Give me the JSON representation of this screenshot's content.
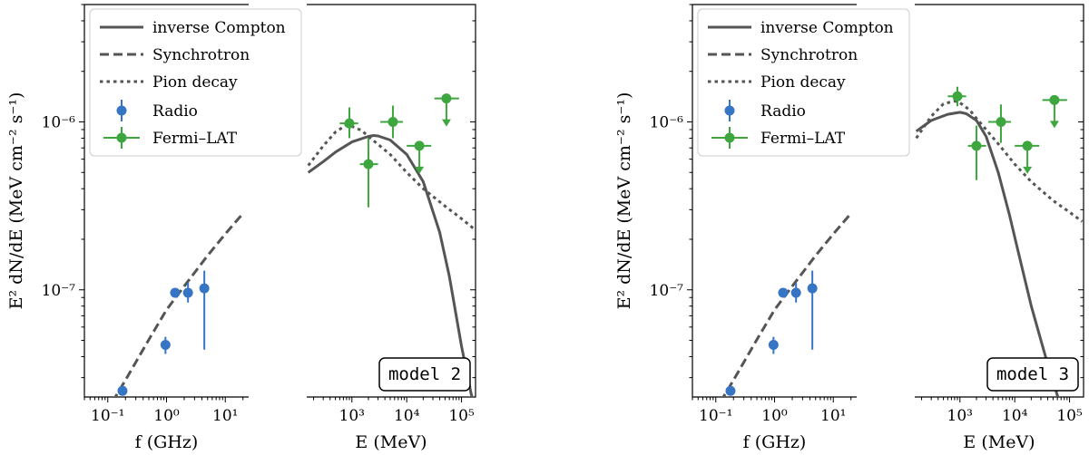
{
  "chart_data": [
    {
      "type": "scatter",
      "panel": "model 2",
      "model_label": "model 2",
      "ylabel": "E² dN/dE (MeV cm⁻² s⁻¹)",
      "ylim": [
        2.3e-08,
        5e-06
      ],
      "y_scale": "log",
      "y_ticks": [
        {
          "value": 1e-07,
          "label": "10⁻⁷"
        },
        {
          "value": 1e-06,
          "label": "10⁻⁶"
        }
      ],
      "legend": {
        "placement": "upper-left",
        "entries": [
          "inverse Compton",
          "Synchrotron",
          "Pion decay",
          "Radio",
          "Fermi–LAT"
        ]
      },
      "radio_axis": {
        "xlabel": "f (GHz)",
        "x_scale": "log",
        "xlim": [
          0.04,
          25
        ],
        "x_ticks": [
          {
            "value": 0.1,
            "label": "10⁻¹"
          },
          {
            "value": 1,
            "label": "10⁰"
          },
          {
            "value": 10,
            "label": "10¹"
          }
        ]
      },
      "gamma_axis": {
        "xlabel": "E (MeV)",
        "x_scale": "log",
        "xlim": [
          150,
          180000
        ],
        "x_ticks": [
          {
            "value": 1000,
            "label": "10³"
          },
          {
            "value": 10000,
            "label": "10⁴"
          },
          {
            "value": 100000,
            "label": "10⁵"
          }
        ]
      },
      "series": [
        {
          "name": "Synchrotron",
          "axis": "radio",
          "style": "dashed",
          "color": "#555555",
          "x": [
            0.12,
            0.2,
            0.5,
            1,
            2,
            5,
            10,
            20
          ],
          "y": [
            2.15e-08,
            2.9e-08,
            5.05e-08,
            7.6e-08,
            1.05e-07,
            1.6e-07,
            2.15e-07,
            2.85e-07
          ]
        },
        {
          "name": "Radio",
          "axis": "radio",
          "color": "#3674c4",
          "points": [
            {
              "x": 0.178,
              "y": 2.5e-08
            },
            {
              "x": 0.96,
              "y": 4.7e-08,
              "ylo": 4.15e-08,
              "yhi": 5.25e-08
            },
            {
              "x": 1.4,
              "y": 9.6e-08,
              "ylo": 9e-08,
              "yhi": 1.02e-07
            },
            {
              "x": 2.32,
              "y": 9.6e-08,
              "ylo": 8.4e-08,
              "yhi": 1.1e-07
            },
            {
              "x": 4.4,
              "y": 1.02e-07,
              "ylo": 4.4e-08,
              "yhi": 1.3e-07
            }
          ]
        },
        {
          "name": "inverse Compton",
          "axis": "gamma",
          "style": "solid",
          "color": "#555555",
          "x": [
            160,
            300,
            500,
            1000,
            2000,
            2500,
            3000,
            5000,
            10000,
            20000,
            40000,
            60000,
            100000,
            150000,
            170000
          ],
          "y": [
            5e-07,
            5.8e-07,
            6.6e-07,
            7.6e-07,
            8.2e-07,
            8.3e-07,
            8.25e-07,
            7.8e-07,
            6.4e-07,
            4.4e-07,
            2.2e-07,
            1.2e-07,
            4.6e-08,
            2.4e-08,
            2.1e-08
          ]
        },
        {
          "name": "Pion decay",
          "axis": "gamma",
          "style": "dotted",
          "color": "#555555",
          "x": [
            160,
            300,
            500,
            800,
            1000,
            1500,
            2000,
            5000,
            10000,
            20000,
            50000,
            100000,
            170000
          ],
          "y": [
            5.5e-07,
            7.2e-07,
            8.7e-07,
            9.6e-07,
            9.4e-07,
            8.9e-07,
            8.2e-07,
            6.4e-07,
            5e-07,
            4e-07,
            3.15e-07,
            2.65e-07,
            2.3e-07
          ]
        },
        {
          "name": "Fermi–LAT",
          "axis": "gamma",
          "color": "#3ea63e",
          "points": [
            {
              "x": 900,
              "xlo": 600,
              "xhi": 1300,
              "y": 9.8e-07,
              "ylo": 8e-07,
              "yhi": 1.22e-06
            },
            {
              "x": 2000,
              "xlo": 1400,
              "xhi": 3000,
              "y": 5.6e-07,
              "ylo": 3.1e-07,
              "yhi": 8e-07
            },
            {
              "x": 5600,
              "xlo": 3300,
              "xhi": 8500,
              "y": 1e-06,
              "ylo": 8e-07,
              "yhi": 1.25e-06
            },
            {
              "x": 17000,
              "xlo": 10000,
              "xhi": 28000,
              "y": 7.2e-07,
              "upper_limit": true
            },
            {
              "x": 53000,
              "xlo": 32000,
              "xhi": 90000,
              "y": 1.38e-06,
              "upper_limit": true
            }
          ]
        }
      ]
    },
    {
      "type": "scatter",
      "panel": "model 3",
      "model_label": "model 3",
      "ylabel": "E² dN/dE (MeV cm⁻² s⁻¹)",
      "ylim": [
        2.3e-08,
        5e-06
      ],
      "y_scale": "log",
      "y_ticks": [
        {
          "value": 1e-07,
          "label": "10⁻⁷"
        },
        {
          "value": 1e-06,
          "label": "10⁻⁶"
        }
      ],
      "legend": {
        "placement": "upper-left",
        "entries": [
          "inverse Compton",
          "Synchrotron",
          "Pion decay",
          "Radio",
          "Fermi–LAT"
        ]
      },
      "radio_axis": {
        "xlabel": "f (GHz)",
        "x_scale": "log",
        "xlim": [
          0.04,
          25
        ],
        "x_ticks": [
          {
            "value": 0.1,
            "label": "10⁻¹"
          },
          {
            "value": 1,
            "label": "10⁰"
          },
          {
            "value": 10,
            "label": "10¹"
          }
        ]
      },
      "gamma_axis": {
        "xlabel": "E (MeV)",
        "x_scale": "log",
        "xlim": [
          150,
          180000
        ],
        "x_ticks": [
          {
            "value": 1000,
            "label": "10³"
          },
          {
            "value": 10000,
            "label": "10⁴"
          },
          {
            "value": 100000,
            "label": "10⁵"
          }
        ]
      },
      "series": [
        {
          "name": "Synchrotron",
          "axis": "radio",
          "style": "dashed",
          "color": "#555555",
          "x": [
            0.12,
            0.2,
            0.5,
            1,
            2,
            5,
            10,
            20
          ],
          "y": [
            2.15e-08,
            2.9e-08,
            5.05e-08,
            7.6e-08,
            1.05e-07,
            1.6e-07,
            2.15e-07,
            2.85e-07
          ]
        },
        {
          "name": "Radio",
          "axis": "radio",
          "color": "#3674c4",
          "points": [
            {
              "x": 0.178,
              "y": 2.5e-08
            },
            {
              "x": 0.96,
              "y": 4.7e-08,
              "ylo": 4.15e-08,
              "yhi": 5.25e-08
            },
            {
              "x": 1.4,
              "y": 9.6e-08,
              "ylo": 9e-08,
              "yhi": 1.02e-07
            },
            {
              "x": 2.32,
              "y": 9.6e-08,
              "ylo": 8.4e-08,
              "yhi": 1.1e-07
            },
            {
              "x": 4.4,
              "y": 1.02e-07,
              "ylo": 4.4e-08,
              "yhi": 1.3e-07
            }
          ]
        },
        {
          "name": "inverse Compton",
          "axis": "gamma",
          "style": "solid",
          "color": "#555555",
          "x": [
            160,
            300,
            600,
            1000,
            1300,
            2000,
            3000,
            5000,
            8000,
            12000,
            20000,
            40000,
            70000,
            100000
          ],
          "y": [
            8.8e-07,
            1.02e-06,
            1.11e-06,
            1.14e-06,
            1.12e-06,
            1.02e-06,
            8.2e-07,
            5e-07,
            2.8e-07,
            1.6e-07,
            8e-08,
            3.6e-08,
            2e-08,
            1.55e-08
          ]
        },
        {
          "name": "Pion decay",
          "axis": "gamma",
          "style": "dotted",
          "color": "#555555",
          "x": [
            160,
            300,
            500,
            800,
            1000,
            1500,
            2000,
            5000,
            10000,
            20000,
            50000,
            100000,
            170000
          ],
          "y": [
            8e-07,
            1.08e-06,
            1.28e-06,
            1.33e-06,
            1.3e-06,
            1.18e-06,
            1.05e-06,
            7.4e-07,
            5.6e-07,
            4.4e-07,
            3.4e-07,
            2.9e-07,
            2.55e-07
          ]
        },
        {
          "name": "Fermi–LAT",
          "axis": "gamma",
          "color": "#3ea63e",
          "points": [
            {
              "x": 900,
              "xlo": 600,
              "xhi": 1300,
              "y": 1.42e-06,
              "ylo": 1.24e-06,
              "yhi": 1.62e-06
            },
            {
              "x": 2000,
              "xlo": 1400,
              "xhi": 3000,
              "y": 7.2e-07,
              "ylo": 4.5e-07,
              "yhi": 9.5e-07
            },
            {
              "x": 5600,
              "xlo": 3300,
              "xhi": 8500,
              "y": 1e-06,
              "ylo": 7.5e-07,
              "yhi": 1.27e-06
            },
            {
              "x": 17000,
              "xlo": 10000,
              "xhi": 28000,
              "y": 7.2e-07,
              "upper_limit": true
            },
            {
              "x": 53000,
              "xlo": 32000,
              "xhi": 90000,
              "y": 1.35e-06,
              "upper_limit": true
            }
          ]
        }
      ]
    }
  ]
}
